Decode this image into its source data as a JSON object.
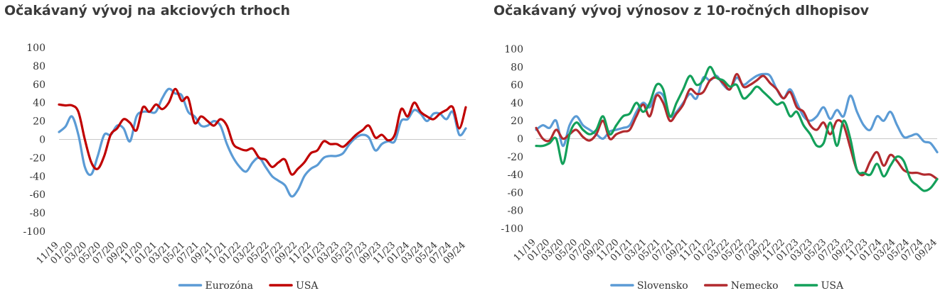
{
  "colors": {
    "eurozona": "#5b9bd5",
    "usa_left": "#c00000",
    "slovensko": "#5b9bd5",
    "nemecko": "#b22a2e",
    "usa_right": "#13a05a",
    "zero_line": "#c8c8c8"
  },
  "chart_data": [
    {
      "type": "line",
      "title": "Očakávaný vývoj na akciových trhoch",
      "ylim": [
        -100,
        100
      ],
      "yticks": [
        100,
        80,
        60,
        40,
        20,
        0,
        -20,
        -40,
        -60,
        -80,
        -100
      ],
      "xticks": [
        "11/19",
        "01/20",
        "03/20",
        "05/20",
        "07/20",
        "09/20",
        "11/20",
        "01/21",
        "03/21",
        "05/21",
        "07/21",
        "09/21",
        "11/21",
        "01/22",
        "03/22",
        "05/22",
        "07/22",
        "09/22",
        "11/22",
        "01/23",
        "03/23",
        "05/23",
        "07/23",
        "09/23",
        "11/23",
        "01/24",
        "03/24",
        "05/24",
        "07/24",
        "09/24"
      ],
      "legend": "bottom-center",
      "grid": false,
      "series": [
        {
          "name": "Eurozóna",
          "color_key": "eurozona",
          "values": [
            8,
            14,
            25,
            5,
            -30,
            -38,
            -18,
            5,
            5,
            15,
            12,
            -2,
            25,
            30,
            30,
            30,
            45,
            55,
            50,
            48,
            30,
            25,
            15,
            15,
            20,
            15,
            -5,
            -20,
            -30,
            -35,
            -25,
            -20,
            -30,
            -40,
            -45,
            -50,
            -62,
            -55,
            -40,
            -32,
            -28,
            -20,
            -18,
            -18,
            -15,
            -5,
            2,
            5,
            2,
            -12,
            -5,
            -2,
            -2,
            20,
            22,
            32,
            28,
            20,
            28,
            28,
            22,
            30,
            5,
            12
          ]
        },
        {
          "name": "USA",
          "color_key": "usa_left",
          "values": [
            38,
            37,
            37,
            30,
            0,
            -25,
            -32,
            -18,
            5,
            12,
            22,
            18,
            10,
            35,
            30,
            38,
            33,
            40,
            55,
            42,
            45,
            18,
            25,
            20,
            15,
            22,
            15,
            -5,
            -10,
            -12,
            -10,
            -20,
            -22,
            -30,
            -25,
            -22,
            -38,
            -32,
            -25,
            -15,
            -12,
            -2,
            -5,
            -5,
            -8,
            -2,
            5,
            10,
            15,
            2,
            5,
            -1,
            5,
            33,
            25,
            40,
            30,
            25,
            22,
            28,
            32,
            35,
            12,
            35
          ]
        }
      ]
    },
    {
      "type": "line",
      "title": "Očakávaný vývoj výnosov z 10-ročných dlhopisov",
      "ylim": [
        -100,
        100
      ],
      "yticks": [
        100,
        80,
        60,
        40,
        20,
        0,
        -20,
        -40,
        -60,
        -80,
        -100
      ],
      "xticks": [
        "11/19",
        "01/20",
        "03/20",
        "05/20",
        "07/20",
        "09/20",
        "11/20",
        "01/21",
        "03/21",
        "05/21",
        "07/21",
        "09/21",
        "11/21",
        "01/22",
        "03/22",
        "05/22",
        "07/22",
        "09/22",
        "11/22",
        "01/23",
        "03/23",
        "05/23",
        "07/23",
        "09/23",
        "11/23",
        "01/24",
        "03/24",
        "05/24",
        "07/24",
        "09/24"
      ],
      "legend": "bottom-center",
      "grid": false,
      "series": [
        {
          "name": "Slovensko",
          "color_key": "slovensko",
          "values": [
            10,
            15,
            12,
            20,
            -8,
            15,
            25,
            15,
            10,
            5,
            0,
            8,
            10,
            12,
            15,
            30,
            40,
            35,
            50,
            48,
            25,
            30,
            40,
            50,
            45,
            68,
            65,
            70,
            60,
            55,
            68,
            60,
            65,
            70,
            72,
            70,
            55,
            45,
            55,
            40,
            25,
            20,
            25,
            35,
            22,
            32,
            25,
            48,
            30,
            15,
            10,
            25,
            20,
            30,
            15,
            2,
            3,
            5,
            -3,
            -5,
            -15
          ]
        },
        {
          "name": "Nemecko",
          "color_key": "nemecko",
          "values": [
            12,
            0,
            -2,
            10,
            0,
            5,
            10,
            2,
            -2,
            5,
            20,
            0,
            5,
            8,
            10,
            25,
            38,
            25,
            48,
            40,
            20,
            28,
            38,
            55,
            50,
            52,
            65,
            68,
            62,
            55,
            72,
            58,
            60,
            65,
            70,
            62,
            55,
            45,
            52,
            35,
            30,
            15,
            10,
            18,
            5,
            20,
            15,
            -10,
            -35,
            -40,
            -25,
            -15,
            -30,
            -18,
            -25,
            -35,
            -38,
            -38,
            -40,
            -40,
            -45
          ]
        },
        {
          "name": "USA",
          "color_key": "usa_right",
          "values": [
            -8,
            -8,
            -5,
            0,
            -28,
            5,
            18,
            10,
            5,
            10,
            25,
            5,
            15,
            25,
            28,
            40,
            30,
            40,
            60,
            55,
            25,
            40,
            55,
            70,
            60,
            65,
            80,
            68,
            65,
            58,
            60,
            45,
            50,
            58,
            52,
            45,
            38,
            40,
            25,
            30,
            15,
            5,
            -8,
            -5,
            18,
            -8,
            20,
            0,
            -35,
            -38,
            -40,
            -28,
            -42,
            -30,
            -20,
            -25,
            -45,
            -52,
            -58,
            -55,
            -45
          ]
        }
      ]
    }
  ]
}
